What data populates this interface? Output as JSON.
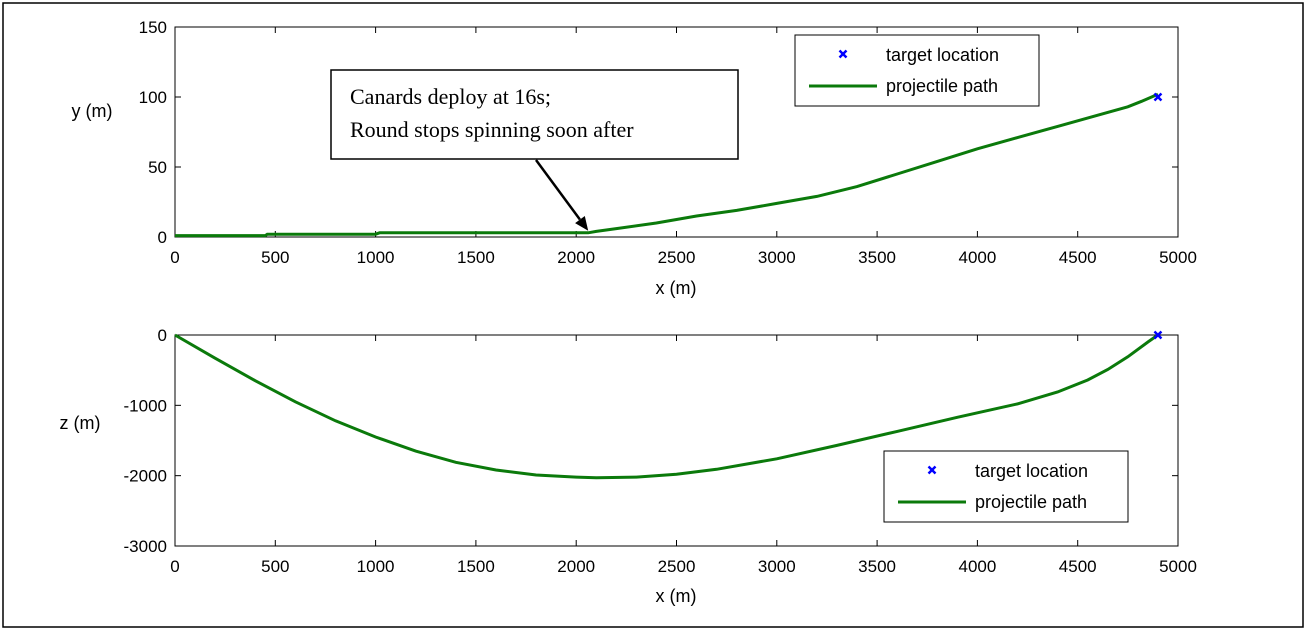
{
  "colors": {
    "path": "#0b7a0b",
    "target": "#0000ff",
    "axes": "#000000"
  },
  "chart_data": [
    {
      "type": "line",
      "xlabel": "x (m)",
      "ylabel": "y (m)",
      "xlim": [
        0,
        5000
      ],
      "ylim": [
        0,
        150
      ],
      "xticks": [
        "0",
        "500",
        "1000",
        "1500",
        "2000",
        "2500",
        "3000",
        "3500",
        "4000",
        "4500",
        "5000"
      ],
      "yticks": [
        "0",
        "50",
        "100",
        "150"
      ],
      "grid": false,
      "legend_position": "top-right",
      "series": [
        {
          "name": "target location",
          "marker": "x",
          "x": [
            4900
          ],
          "y": [
            100
          ]
        },
        {
          "name": "projectile path",
          "x": [
            0,
            300,
            450,
            460,
            1000,
            1020,
            2000,
            2060,
            2100,
            2200,
            2400,
            2600,
            2800,
            3000,
            3200,
            3400,
            3600,
            3800,
            4000,
            4200,
            4400,
            4600,
            4750,
            4820,
            4900
          ],
          "y": [
            1,
            1,
            1,
            2,
            2,
            3,
            3,
            3,
            4,
            6,
            10,
            15,
            19,
            24,
            29,
            36,
            45,
            54,
            63,
            71,
            79,
            87,
            93,
            97,
            102
          ]
        }
      ],
      "annotation": {
        "lines": [
          "Canards deploy at 16s;",
          "Round stops spinning soon after"
        ],
        "arrow_to": [
          2060,
          3
        ]
      }
    },
    {
      "type": "line",
      "xlabel": "x (m)",
      "ylabel": "z (m)",
      "xlim": [
        0,
        5000
      ],
      "ylim": [
        -3000,
        0
      ],
      "xticks": [
        "0",
        "500",
        "1000",
        "1500",
        "2000",
        "2500",
        "3000",
        "3500",
        "4000",
        "4500",
        "5000"
      ],
      "yticks": [
        "0",
        "-1000",
        "-2000",
        "-3000"
      ],
      "grid": false,
      "legend_position": "bottom-right",
      "series": [
        {
          "name": "target location",
          "marker": "x",
          "x": [
            4900
          ],
          "y": [
            0
          ]
        },
        {
          "name": "projectile path",
          "x": [
            0,
            200,
            400,
            600,
            800,
            1000,
            1200,
            1400,
            1600,
            1800,
            2000,
            2100,
            2300,
            2500,
            2700,
            3000,
            3300,
            3600,
            3900,
            4200,
            4400,
            4550,
            4650,
            4750,
            4850,
            4900
          ],
          "y": [
            0,
            -330,
            -650,
            -950,
            -1220,
            -1450,
            -1650,
            -1810,
            -1920,
            -1990,
            -2020,
            -2030,
            -2020,
            -1980,
            -1910,
            -1760,
            -1570,
            -1370,
            -1170,
            -980,
            -810,
            -640,
            -490,
            -310,
            -100,
            0
          ]
        }
      ]
    }
  ]
}
